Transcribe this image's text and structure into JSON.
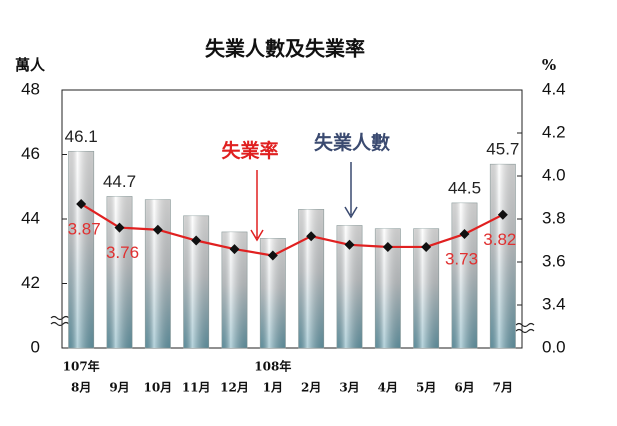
{
  "chart_data": {
    "type": "bar-line",
    "title": "失業人數及失業率",
    "y_label": "萬人",
    "y2_label": "%",
    "categories": [
      "8月",
      "9月",
      "10月",
      "11月",
      "12月",
      "1月",
      "2月",
      "3月",
      "4月",
      "5月",
      "6月",
      "7月"
    ],
    "year_labels": [
      "107年",
      null,
      null,
      null,
      null,
      "108年",
      null,
      null,
      null,
      null,
      null,
      null
    ],
    "series": [
      {
        "name": "失業人數",
        "type": "bar",
        "color": "#7fb3c2",
        "label_color": "#222222",
        "values": [
          46.1,
          44.7,
          44.6,
          44.1,
          43.6,
          43.4,
          44.3,
          43.8,
          43.7,
          43.7,
          44.5,
          45.7
        ],
        "show_label": [
          true,
          true,
          false,
          false,
          false,
          false,
          false,
          false,
          false,
          false,
          true,
          true
        ]
      },
      {
        "name": "失業率",
        "type": "line",
        "axis": "y2",
        "color": "#e02020",
        "marker_color": "#111111",
        "label_color": "#e03030",
        "values": [
          3.87,
          3.76,
          3.75,
          3.7,
          3.66,
          3.63,
          3.72,
          3.68,
          3.67,
          3.67,
          3.73,
          3.82
        ],
        "show_label": [
          true,
          true,
          false,
          false,
          false,
          false,
          false,
          false,
          false,
          false,
          true,
          true
        ]
      }
    ],
    "ylim": [
      0,
      48
    ],
    "yticks": [
      0,
      42,
      44,
      46,
      48
    ],
    "y2lim": [
      0,
      4.4
    ],
    "y2ticks": [
      {
        "value": 0,
        "label": "0.0"
      },
      3.4,
      3.6,
      3.8,
      {
        "value": 4,
        "label": "4.0"
      },
      4.2,
      4.4
    ],
    "axis_break": true,
    "grid": false
  }
}
